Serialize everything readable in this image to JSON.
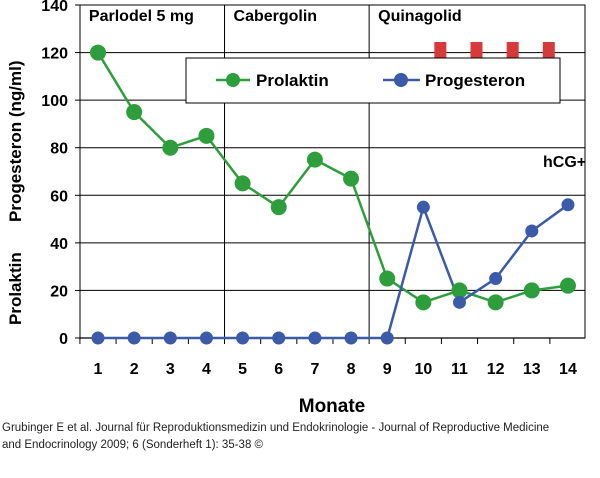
{
  "chart_data": {
    "type": "line",
    "categories": [
      "1",
      "2",
      "3",
      "4",
      "5",
      "6",
      "7",
      "8",
      "9",
      "10",
      "11",
      "12",
      "13",
      "14"
    ],
    "xlabel": "Monate",
    "ylabel_parts": [
      "Prolaktin",
      "Progesteron (ng/ml)"
    ],
    "ylim": [
      0,
      140
    ],
    "yticks": [
      "0",
      "20",
      "40",
      "60",
      "80",
      "100",
      "120",
      "140"
    ],
    "phases": [
      {
        "label": "Parlodel 5 mg",
        "from": 1,
        "to": 4
      },
      {
        "label": "Cabergolin",
        "from": 5,
        "to": 8
      },
      {
        "label": "Quinagolid",
        "from": 9,
        "to": 14
      }
    ],
    "series": [
      {
        "name": "Prolaktin",
        "color": "#2e9e3c",
        "values": [
          120,
          95,
          80,
          85,
          65,
          55,
          75,
          67,
          25,
          15,
          20,
          15,
          20,
          22
        ]
      },
      {
        "name": "Progesteron",
        "color": "#3b5aa8",
        "values": [
          0,
          0,
          0,
          0,
          0,
          0,
          0,
          0,
          0,
          55,
          15,
          25,
          45,
          56
        ]
      }
    ],
    "markers": {
      "color": "#d63a3a",
      "x": [
        10,
        11,
        12,
        13
      ]
    },
    "annotation": {
      "text": "hCG+",
      "x": 14
    }
  },
  "caption": {
    "line1": "Grubinger E et al. Journal für Reproduktionsmedizin und Endokrinologie - Journal of Reproductive Medicine",
    "line2": "and Endocrinology 2009; 6 (Sonderheft 1): 35-38 ©"
  }
}
